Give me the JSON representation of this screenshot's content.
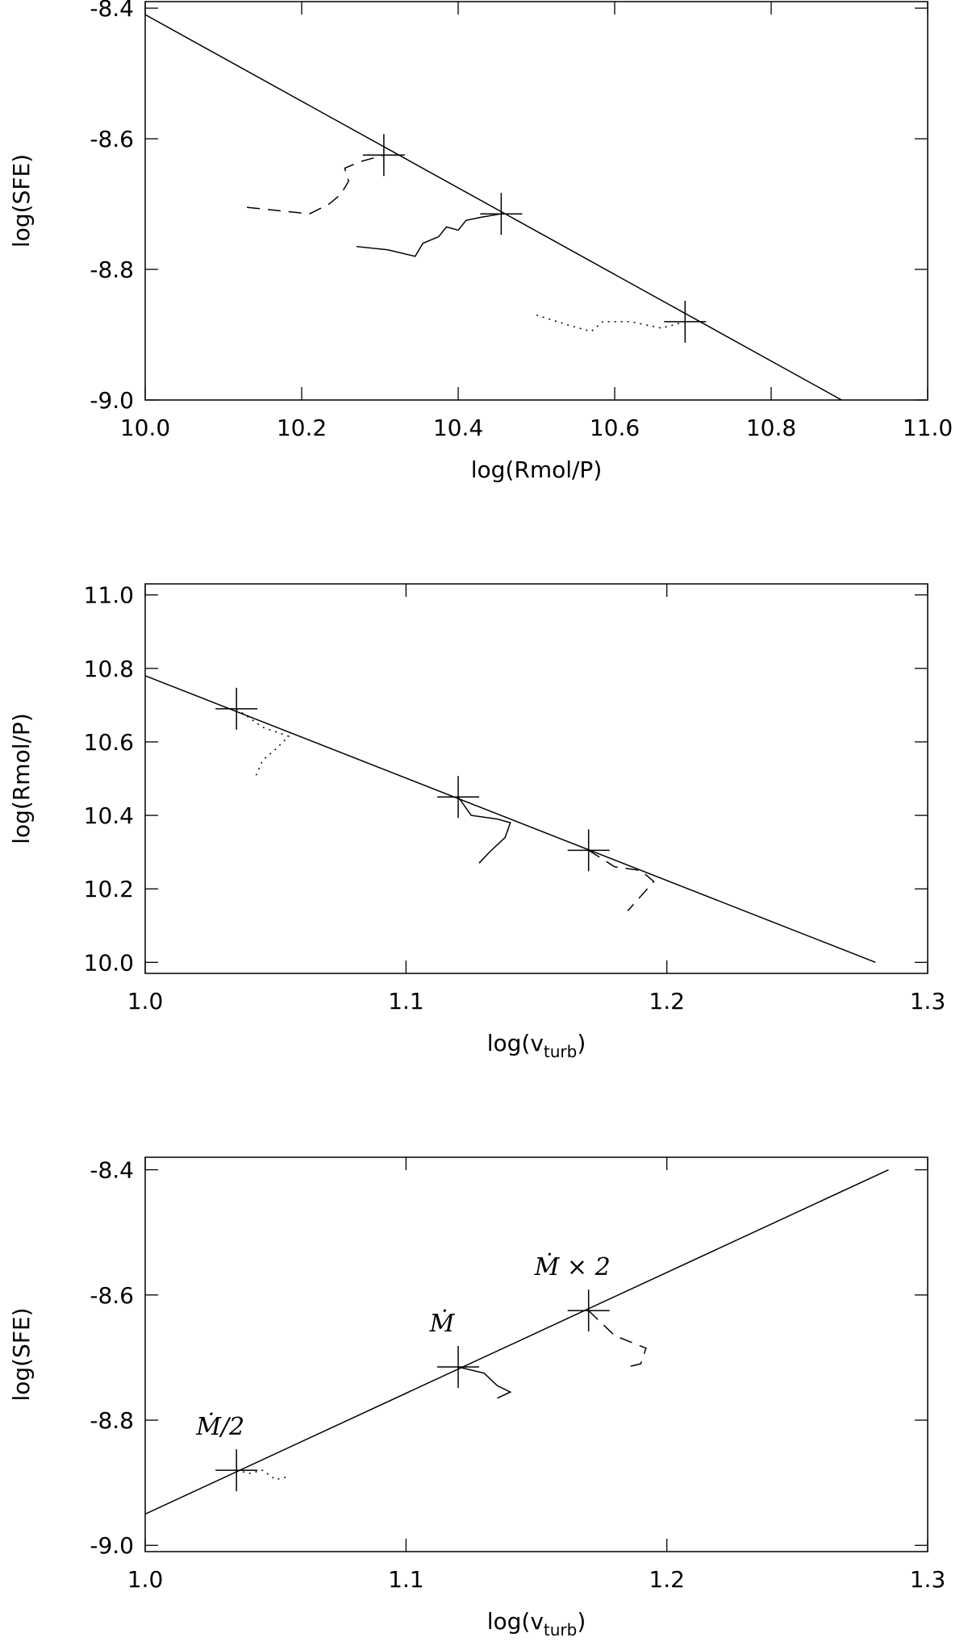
{
  "chart_data": [
    {
      "type": "line",
      "x_label": "log(Rmol/P)",
      "y_label": "log(SFE)",
      "xlim": [
        10.0,
        11.0
      ],
      "xticks": [
        {
          "value": 10,
          "label": "10.0"
        },
        10.2,
        10.4,
        10.6,
        10.8,
        {
          "value": 11,
          "label": "11.0"
        }
      ],
      "ylim": [
        -9.0,
        -8.39
      ],
      "yticks": [
        {
          "value": -9,
          "label": "-9.0"
        },
        -8.8,
        -8.6,
        -8.4
      ],
      "series": [
        {
          "style": "solid",
          "color": "#000000",
          "x": [
            10.0,
            10.89
          ],
          "values": [
            -8.41,
            -9.0
          ]
        },
        {
          "style": "marker",
          "color": "#000000",
          "x": [
            10.305,
            10.455,
            10.69
          ],
          "values": [
            -8.625,
            -8.715,
            -8.88
          ]
        },
        {
          "style": "dash",
          "color": "#000000",
          "x": [
            10.13,
            10.17,
            10.21,
            10.235,
            10.25,
            10.26,
            10.255,
            10.275,
            10.305
          ],
          "values": [
            -8.705,
            -8.71,
            -8.715,
            -8.7,
            -8.685,
            -8.665,
            -8.645,
            -8.635,
            -8.625
          ]
        },
        {
          "style": "solid",
          "color": "#000000",
          "x": [
            10.27,
            10.31,
            10.345,
            10.355,
            10.375,
            10.385,
            10.4,
            10.41,
            10.43,
            10.455
          ],
          "values": [
            -8.765,
            -8.77,
            -8.78,
            -8.76,
            -8.75,
            -8.735,
            -8.74,
            -8.725,
            -8.72,
            -8.715
          ]
        },
        {
          "style": "dot",
          "color": "#000000",
          "x": [
            10.5,
            10.54,
            10.57,
            10.585,
            10.62,
            10.66,
            10.69
          ],
          "values": [
            -8.87,
            -8.885,
            -8.895,
            -8.88,
            -8.88,
            -8.89,
            -8.88
          ]
        }
      ]
    },
    {
      "type": "line",
      "x_label": "log(v",
      "x_label_sub": "turb",
      "x_label_end": ")",
      "y_label": "log(Rmol/P)",
      "xlim": [
        1.0,
        1.3
      ],
      "xticks": [
        {
          "value": 1,
          "label": "1.0"
        },
        1.1,
        1.2,
        1.3
      ],
      "ylim": [
        9.97,
        11.03
      ],
      "yticks": [
        {
          "value": 10,
          "label": "10.0"
        },
        10.2,
        10.4,
        10.6,
        10.8,
        {
          "value": 11,
          "label": "11.0"
        }
      ],
      "series": [
        {
          "style": "solid",
          "color": "#000000",
          "x": [
            1.0,
            1.28
          ],
          "values": [
            10.78,
            10.0
          ]
        },
        {
          "style": "marker",
          "color": "#000000",
          "x": [
            1.035,
            1.12,
            1.17
          ],
          "values": [
            10.69,
            10.45,
            10.305
          ]
        },
        {
          "style": "dot",
          "color": "#000000",
          "x": [
            1.035,
            1.045,
            1.055,
            1.05,
            1.045,
            1.042
          ],
          "values": [
            10.69,
            10.64,
            10.615,
            10.58,
            10.55,
            10.5
          ]
        },
        {
          "style": "solid",
          "color": "#000000",
          "x": [
            1.12,
            1.125,
            1.135,
            1.14,
            1.138,
            1.132,
            1.128
          ],
          "values": [
            10.45,
            10.4,
            10.39,
            10.38,
            10.34,
            10.3,
            10.27
          ]
        },
        {
          "style": "dash",
          "color": "#000000",
          "x": [
            1.17,
            1.18,
            1.19,
            1.195,
            1.19,
            1.185
          ],
          "values": [
            10.305,
            10.26,
            10.25,
            10.22,
            10.18,
            10.14
          ]
        }
      ]
    },
    {
      "type": "line",
      "x_label": "log(v",
      "x_label_sub": "turb",
      "x_label_end": ")",
      "y_label": "log(SFE)",
      "xlim": [
        1.0,
        1.3
      ],
      "xticks": [
        {
          "value": 1,
          "label": "1.0"
        },
        1.1,
        1.2,
        1.3
      ],
      "ylim": [
        -9.01,
        -8.38
      ],
      "yticks": [
        {
          "value": -9,
          "label": "-9.0"
        },
        -8.8,
        -8.6,
        -8.4
      ],
      "annotations": [
        "Ṁ/2",
        "Ṁ",
        "Ṁ × 2"
      ],
      "series": [
        {
          "style": "solid",
          "color": "#000000",
          "x": [
            1.0,
            1.285
          ],
          "values": [
            -8.95,
            -8.4
          ]
        },
        {
          "style": "marker",
          "color": "#000000",
          "x": [
            1.035,
            1.12,
            1.17
          ],
          "values": [
            -8.88,
            -8.715,
            -8.625
          ]
        },
        {
          "style": "dot",
          "color": "#000000",
          "x": [
            1.035,
            1.04,
            1.045,
            1.05,
            1.055
          ],
          "values": [
            -8.88,
            -8.885,
            -8.88,
            -8.895,
            -8.89
          ]
        },
        {
          "style": "solid",
          "color": "#000000",
          "x": [
            1.12,
            1.13,
            1.135,
            1.14,
            1.135
          ],
          "values": [
            -8.715,
            -8.725,
            -8.745,
            -8.755,
            -8.765
          ]
        },
        {
          "style": "dash",
          "color": "#000000",
          "x": [
            1.17,
            1.18,
            1.192,
            1.19,
            1.185
          ],
          "values": [
            -8.625,
            -8.665,
            -8.685,
            -8.71,
            -8.715
          ]
        }
      ]
    }
  ]
}
